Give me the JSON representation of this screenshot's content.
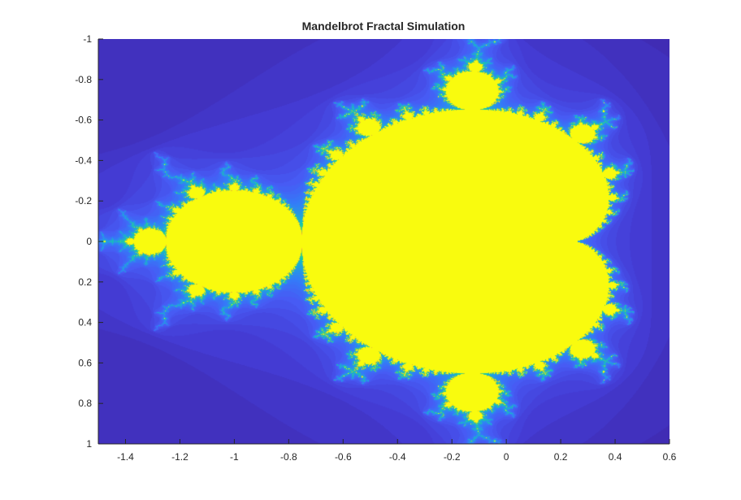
{
  "chart_data": {
    "type": "heatmap",
    "title": "Mandelbrot Fractal Simulation",
    "xlabel": "",
    "ylabel": "",
    "xlim": [
      -1.5,
      0.6
    ],
    "ylim": [
      -1,
      1
    ],
    "y_direction": "reverse",
    "x_ticks": [
      -1.4,
      -1.2,
      -1,
      -0.8,
      -0.6,
      -0.4,
      -0.2,
      0,
      0.2,
      0.4,
      0.6
    ],
    "x_tick_labels": [
      "-1.4",
      "-1.2",
      "-1",
      "-0.8",
      "-0.6",
      "-0.4",
      "-0.2",
      "0",
      "0.2",
      "0.4",
      "0.6"
    ],
    "y_ticks": [
      -1,
      -0.8,
      -0.6,
      -0.4,
      -0.2,
      0,
      0.2,
      0.4,
      0.6,
      0.8,
      1
    ],
    "y_tick_labels": [
      "-1",
      "-0.8",
      "-0.6",
      "-0.4",
      "-0.2",
      "0",
      "0.2",
      "0.4",
      "0.6",
      "0.8",
      "1"
    ],
    "grid": false,
    "colormap": "parula",
    "colors": {
      "background": "#3e26a8",
      "set_interior": "#f9fb0e",
      "axis": "#262626"
    }
  }
}
